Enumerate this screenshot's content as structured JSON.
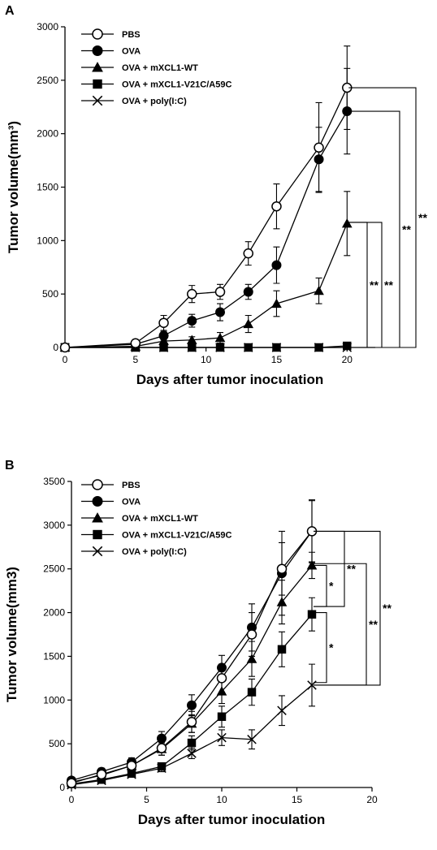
{
  "chart_data": [
    {
      "panel": "A",
      "type": "line",
      "title": "",
      "xlabel": "Days after tumor inoculation",
      "ylabel": "Tumor volume(mm³)",
      "xlim": [
        0,
        22
      ],
      "ylim": [
        0,
        3000
      ],
      "xticks": [
        0,
        5,
        10,
        15,
        20
      ],
      "yticks": [
        0,
        500,
        1000,
        1500,
        2000,
        2500,
        3000
      ],
      "grid": false,
      "legend_position": "top-left",
      "series": [
        {
          "name": "PBS",
          "marker": "open-circle",
          "x": [
            0,
            5,
            7,
            9,
            11,
            13,
            15,
            18,
            20
          ],
          "y": [
            0,
            40,
            230,
            500,
            520,
            880,
            1320,
            1870,
            2430
          ],
          "err": [
            0,
            10,
            70,
            80,
            70,
            110,
            210,
            420,
            390
          ]
        },
        {
          "name": "OVA",
          "marker": "filled-circle",
          "x": [
            0,
            5,
            7,
            9,
            11,
            13,
            15,
            18,
            20
          ],
          "y": [
            0,
            30,
            110,
            250,
            330,
            520,
            770,
            1760,
            2210
          ],
          "err": [
            0,
            10,
            40,
            60,
            80,
            70,
            170,
            300,
            400
          ]
        },
        {
          "name": "OVA + mXCL1-WT",
          "marker": "filled-triangle",
          "x": [
            0,
            5,
            7,
            9,
            11,
            13,
            15,
            18,
            20
          ],
          "y": [
            0,
            10,
            60,
            70,
            90,
            220,
            410,
            530,
            1160
          ],
          "err": [
            0,
            5,
            20,
            30,
            50,
            80,
            120,
            120,
            300
          ]
        },
        {
          "name": "OVA + mXCL1-V21C/A59C",
          "marker": "filled-square",
          "x": [
            0,
            5,
            7,
            9,
            11,
            13,
            15,
            18,
            20
          ],
          "y": [
            0,
            0,
            0,
            0,
            0,
            0,
            0,
            0,
            15
          ],
          "err": [
            0,
            0,
            0,
            0,
            0,
            0,
            0,
            0,
            10
          ]
        },
        {
          "name": "OVA + poly(I:C)",
          "marker": "x",
          "x": [
            0,
            5,
            7,
            9,
            11,
            13,
            15,
            18,
            20
          ],
          "y": [
            0,
            0,
            0,
            0,
            0,
            0,
            0,
            0,
            0
          ],
          "err": [
            0,
            0,
            0,
            0,
            0,
            0,
            0,
            0,
            0
          ]
        }
      ],
      "annotations": [
        "**",
        "**",
        "**",
        "**"
      ]
    },
    {
      "panel": "B",
      "type": "line",
      "title": "",
      "xlabel": "Days after tumor inoculation",
      "ylabel": "Tumor volume(mm3)",
      "xlim": [
        0,
        20
      ],
      "ylim": [
        0,
        3500
      ],
      "xticks": [
        0,
        5,
        10,
        15,
        20
      ],
      "yticks": [
        0,
        500,
        1000,
        1500,
        2000,
        2500,
        3000,
        3500
      ],
      "grid": false,
      "legend_position": "top-left",
      "series": [
        {
          "name": "PBS",
          "marker": "open-circle",
          "x": [
            0,
            2,
            4,
            6,
            8,
            10,
            12,
            14,
            16
          ],
          "y": [
            50,
            150,
            250,
            450,
            750,
            1250,
            1750,
            2500,
            2930
          ],
          "err": [
            15,
            30,
            40,
            80,
            120,
            160,
            250,
            300,
            350
          ]
        },
        {
          "name": "OVA",
          "marker": "filled-circle",
          "x": [
            0,
            2,
            4,
            6,
            8,
            10,
            12,
            14,
            16
          ],
          "y": [
            80,
            180,
            290,
            560,
            940,
            1370,
            1830,
            2450,
            2930
          ],
          "err": [
            20,
            40,
            50,
            80,
            120,
            140,
            270,
            480,
            360
          ]
        },
        {
          "name": "OVA + mXCL1-WT",
          "marker": "filled-triangle",
          "x": [
            0,
            2,
            4,
            6,
            8,
            10,
            12,
            14,
            16
          ],
          "y": [
            60,
            140,
            250,
            440,
            730,
            1100,
            1470,
            2120,
            2540
          ],
          "err": [
            15,
            30,
            40,
            70,
            100,
            140,
            200,
            250,
            150
          ]
        },
        {
          "name": "OVA + mXCL1-V21C/A59C",
          "marker": "filled-square",
          "x": [
            0,
            2,
            4,
            6,
            8,
            10,
            12,
            14,
            16
          ],
          "y": [
            40,
            90,
            160,
            240,
            510,
            810,
            1090,
            1580,
            1980
          ],
          "err": [
            10,
            20,
            30,
            40,
            80,
            120,
            150,
            200,
            190
          ]
        },
        {
          "name": "OVA + poly(I:C)",
          "marker": "x",
          "x": [
            0,
            2,
            4,
            6,
            8,
            10,
            12,
            14,
            16
          ],
          "y": [
            30,
            80,
            150,
            220,
            390,
            570,
            550,
            880,
            1170
          ],
          "err": [
            10,
            20,
            30,
            40,
            60,
            90,
            110,
            170,
            240
          ]
        }
      ],
      "annotations": [
        "*",
        "**",
        "*",
        "**",
        "**"
      ]
    }
  ]
}
